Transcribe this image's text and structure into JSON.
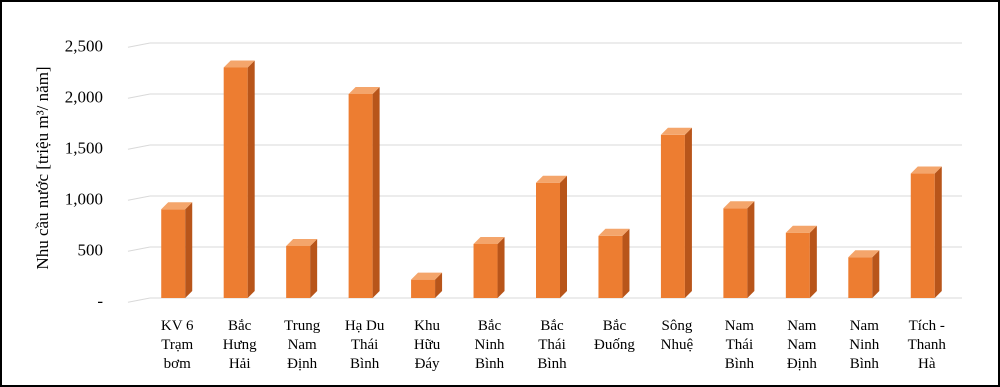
{
  "chart_data": {
    "type": "bar",
    "bar_style": "3d",
    "title": "",
    "xlabel": "",
    "ylabel": "Nhu cầu nước [triệu m³/ năm]",
    "ylim": [
      0,
      2500
    ],
    "y_ticks": [
      0,
      500,
      1000,
      1500,
      2000,
      2500
    ],
    "y_tick_labels": [
      "-",
      "500",
      "1,000",
      "1,500",
      "2,000",
      "2,500"
    ],
    "grid": true,
    "legend": "none",
    "categories": [
      [
        "KV 6",
        "Trạm",
        "bơm"
      ],
      [
        "Bắc",
        "Hưng",
        "Hải"
      ],
      [
        "Trung",
        "Nam",
        "Định"
      ],
      [
        "Hạ Du",
        "Thái",
        "Bình"
      ],
      [
        "Khu",
        "Hữu",
        "Đáy"
      ],
      [
        "Bắc",
        "Ninh",
        "Bình"
      ],
      [
        "Bắc",
        "Thái",
        "Bình"
      ],
      [
        "Bắc",
        "Đuống"
      ],
      [
        "Sông",
        "Nhuệ"
      ],
      [
        "Nam",
        "Thái",
        "Bình"
      ],
      [
        "Nam",
        "Nam",
        "Định"
      ],
      [
        "Nam",
        "Ninh",
        "Bình"
      ],
      [
        "Tích -",
        "Thanh",
        "Hà"
      ]
    ],
    "values": [
      870,
      2260,
      510,
      2000,
      180,
      530,
      1130,
      610,
      1600,
      880,
      640,
      400,
      1220
    ],
    "colors": {
      "bar_front": "#ED7D31",
      "bar_side": "#B8551A",
      "bar_top": "#F4A56B",
      "gridline": "#D9D9D9",
      "text": "#000000",
      "frame": "#000000"
    }
  }
}
